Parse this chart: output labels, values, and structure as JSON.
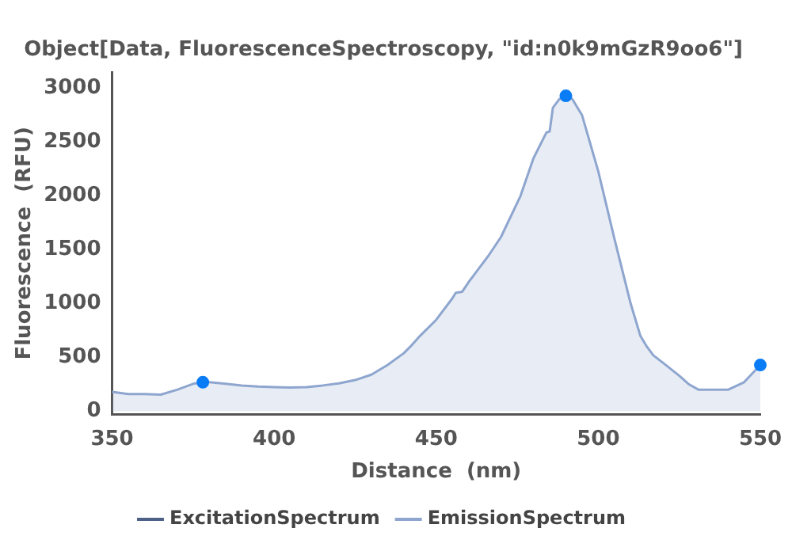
{
  "chart_data": {
    "type": "area",
    "title": "Object[Data, FluorescenceSpectroscopy, \"id:n0k9mGzR9oo6\"]",
    "xlabel": "Distance  (nm)",
    "ylabel": "Fluorescence  (RFU)",
    "xlim": [
      350,
      550
    ],
    "xticks": [
      350,
      400,
      450,
      500,
      550
    ],
    "ylim": [
      -30,
      3150
    ],
    "yticks": [
      0,
      500,
      1000,
      1500,
      2000,
      2500,
      3000
    ],
    "grid": false,
    "legend": "bottom",
    "series": [
      {
        "name": "ExcitationSpectrum",
        "type": "line",
        "color": "#4d6188"
      },
      {
        "name": "EmissionSpectrum",
        "color": "#8ea6cf",
        "x": [
          350,
          355,
          360,
          365,
          370,
          375,
          378,
          380,
          385,
          390,
          395,
          400,
          405,
          410,
          415,
          420,
          425,
          430,
          435,
          440,
          442,
          445,
          450,
          455,
          456,
          458,
          460,
          466,
          470,
          476,
          480,
          484,
          485,
          486,
          488,
          490,
          492,
          495,
          500,
          505,
          510,
          513,
          515,
          517,
          520,
          525,
          528,
          531,
          535,
          540,
          545,
          550
        ],
        "values": [
          180,
          160,
          160,
          155,
          200,
          255,
          270,
          270,
          255,
          240,
          230,
          225,
          220,
          225,
          240,
          260,
          290,
          340,
          430,
          540,
          600,
          700,
          850,
          1050,
          1100,
          1110,
          1200,
          1440,
          1620,
          2000,
          2350,
          2590,
          2600,
          2820,
          2900,
          2930,
          2900,
          2750,
          2230,
          1600,
          1000,
          700,
          600,
          520,
          450,
          330,
          250,
          200,
          200,
          200,
          270,
          430
        ]
      },
      {
        "type": "scatter",
        "color": "#0a7cf5",
        "marker": "circle",
        "x": [
          378,
          490,
          550
        ],
        "values": [
          270,
          2930,
          430
        ]
      }
    ]
  }
}
